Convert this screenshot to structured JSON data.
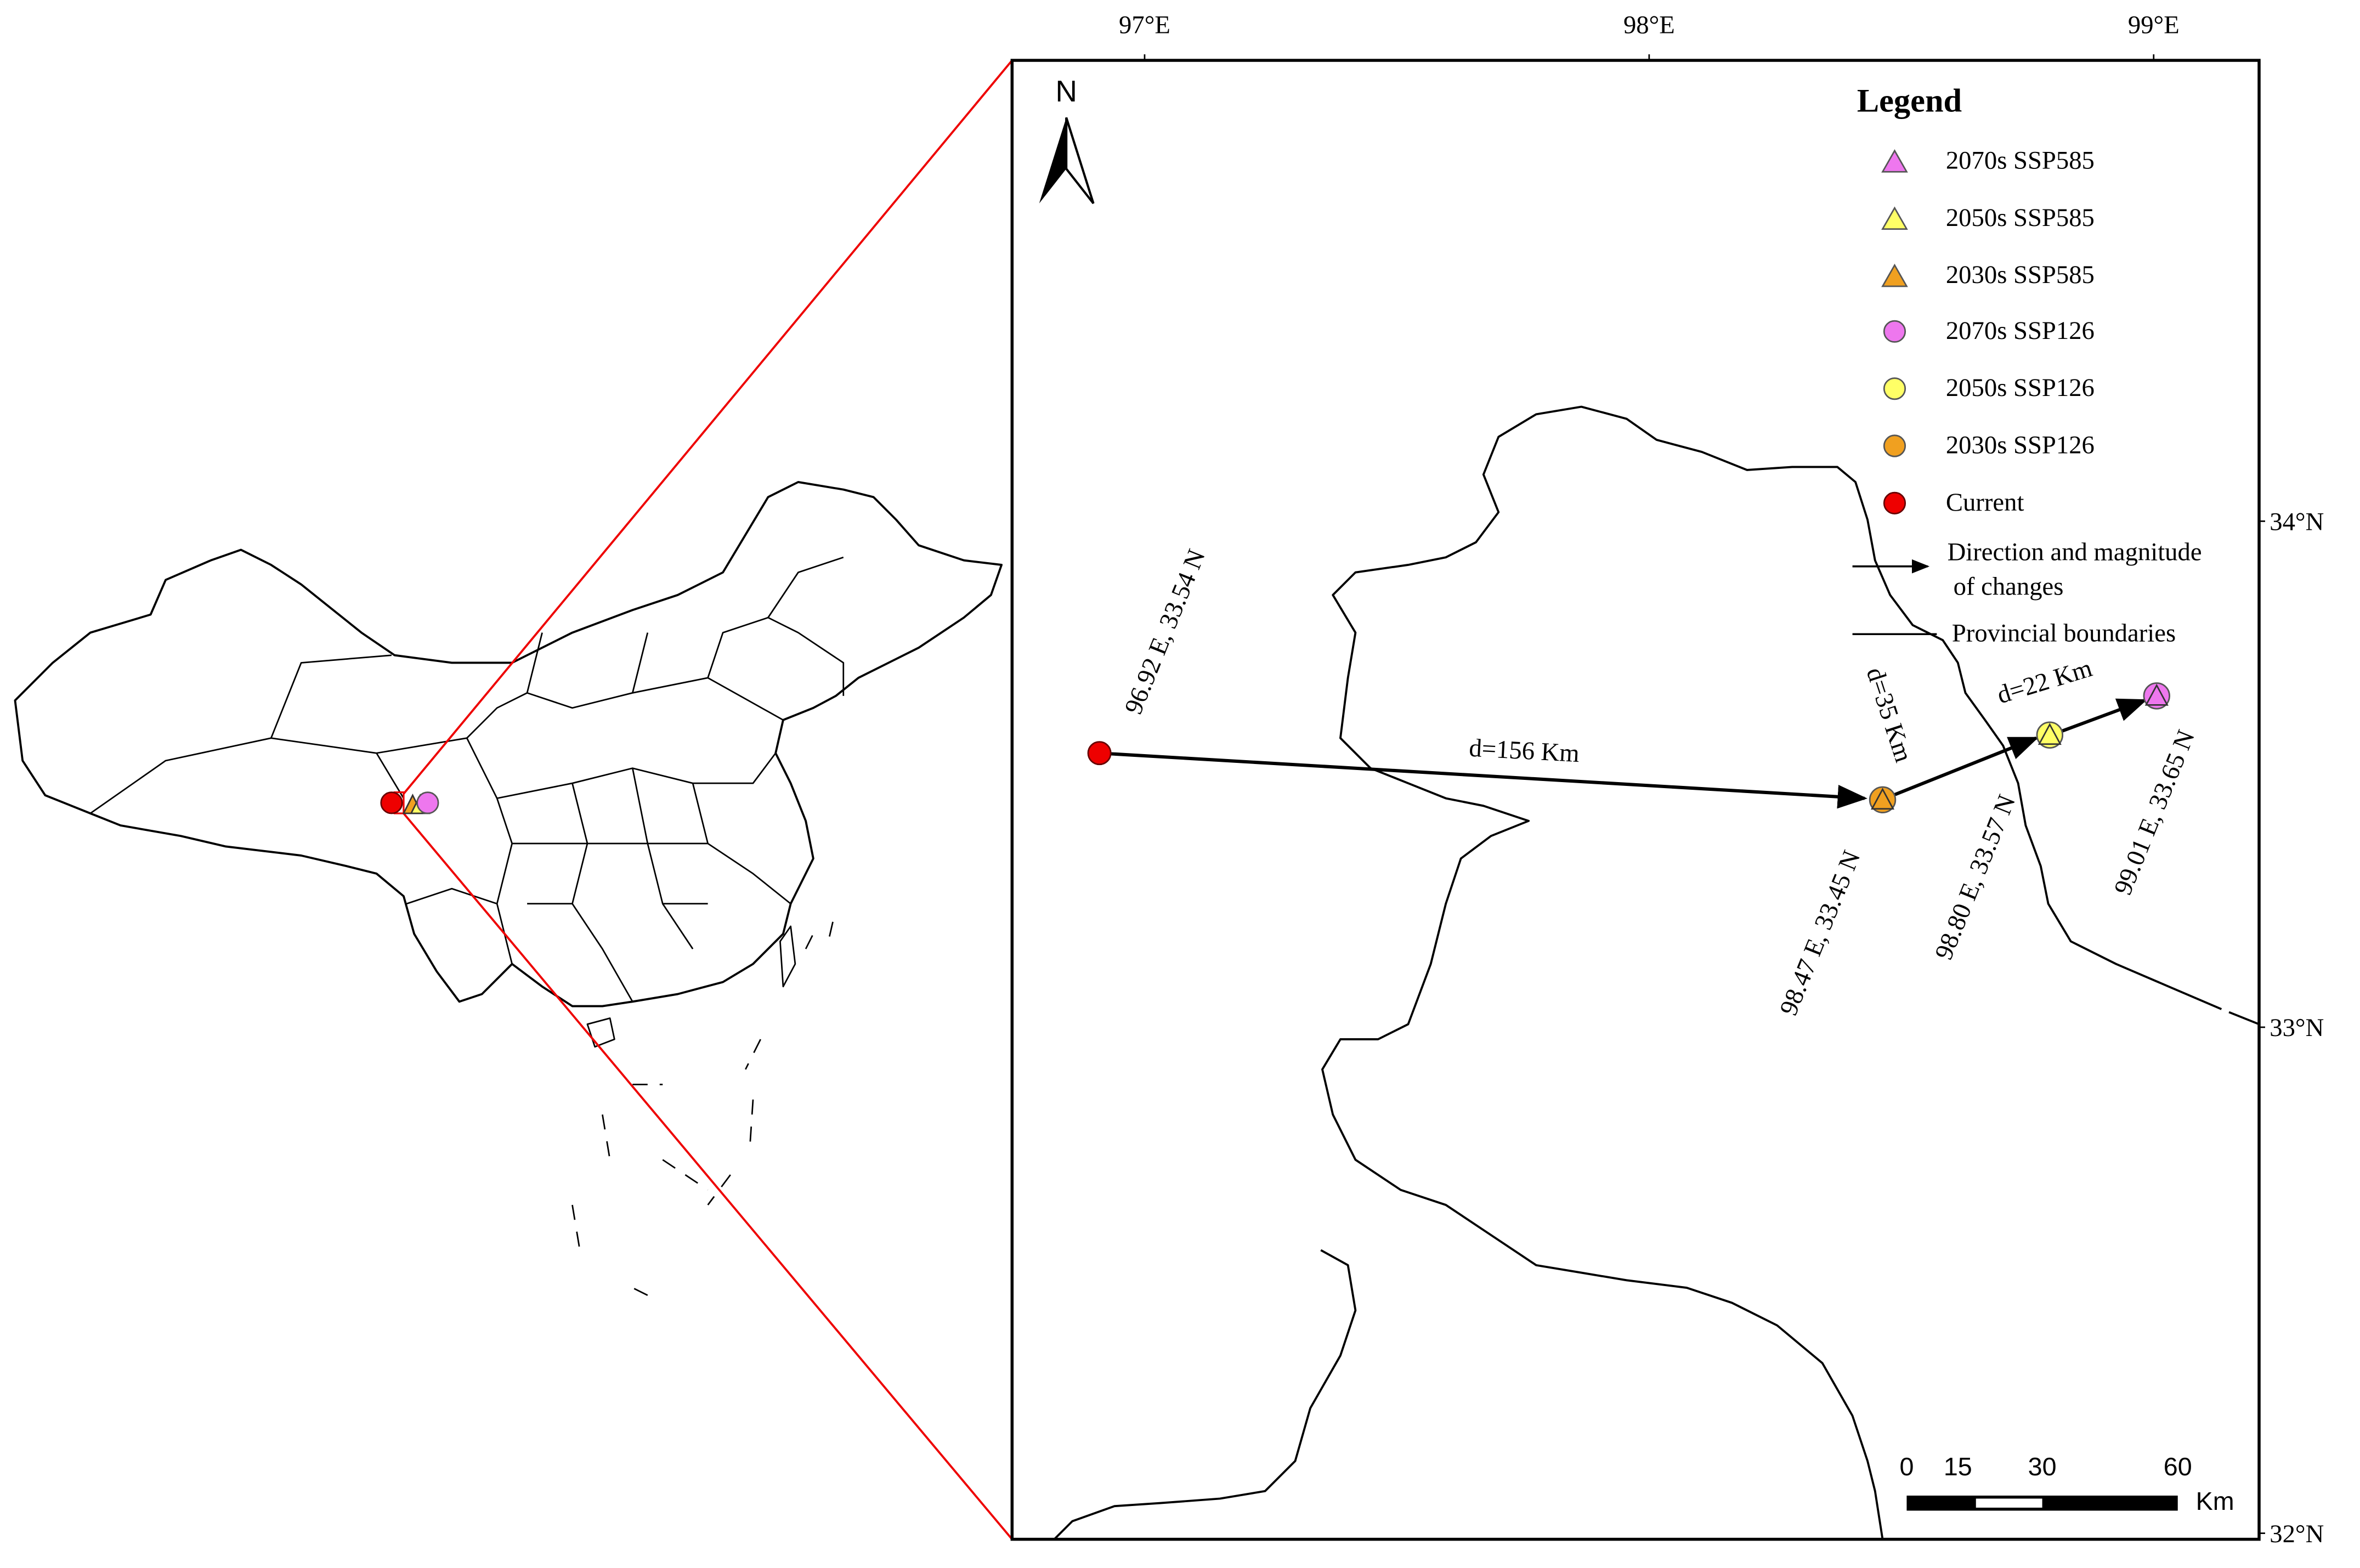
{
  "overview_map": {
    "description": "China provincial map with shift location"
  },
  "inset_map": {
    "lon_labels": [
      "97°E",
      "98°E",
      "99°E"
    ],
    "lat_labels": [
      "34°N",
      "33°N",
      "32°N"
    ],
    "north_arrow": "N",
    "legend": {
      "title": "Legend",
      "items": [
        "2070s SSP585",
        "2050s SSP585",
        "2030s SSP585",
        "2070s SSP126",
        "2050s SSP126",
        "2030s SSP126",
        "Current",
        "Direction and magnitude",
        "of changes",
        "Provincial boundaries"
      ]
    },
    "points": [
      {
        "label": "96.92 E, 33.54 N"
      },
      {
        "label": "98.47 E, 33.45 N"
      },
      {
        "label": "98.80 E, 33.57 N"
      },
      {
        "label": "99.01 E, 33.65 N"
      }
    ],
    "distances": [
      "d=156 Km",
      "d=35 Km",
      "d=22 Km"
    ],
    "scale_bar": {
      "labels": [
        "0",
        "15",
        "30",
        "60"
      ],
      "unit": "Km"
    }
  }
}
